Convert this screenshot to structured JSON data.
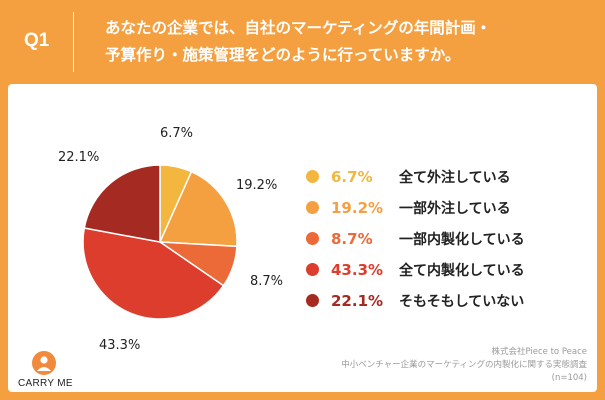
{
  "header": {
    "question_number": "Q1",
    "question_line1": "あなたの企業では、自社のマーケティングの年間計画・",
    "question_line2": "予算作り・施策管理をどのように行っていますか。"
  },
  "chart_data": {
    "type": "pie",
    "title": "あなたの企業では、自社のマーケティングの年間計画・予算作り・施策管理をどのように行っていますか。",
    "categories": [
      "全て外注している",
      "一部外注している",
      "一部内製化している",
      "全て内製化している",
      "そもそもしていない"
    ],
    "values": [
      6.7,
      19.2,
      8.7,
      43.3,
      22.1
    ],
    "value_labels": [
      "6.7%",
      "19.2%",
      "8.7%",
      "43.3%",
      "22.1%"
    ],
    "colors": [
      "#f3b63f",
      "#f4a041",
      "#eb6a37",
      "#dc3d2d",
      "#a52a21"
    ],
    "label_colors": [
      "#f3b63f",
      "#f4a041",
      "#eb6a37",
      "#dc3d2d",
      "#a52a21"
    ],
    "start_angle": "12 o'clock",
    "direction": "clockwise",
    "legend_position": "right"
  },
  "footer": {
    "brand": "CARRY ME",
    "source_line1": "株式会社Piece to Peace",
    "source_line2": "中小ベンチャー企業のマーケティングの内製化に関する実態調査",
    "source_line3": "(n=104)"
  }
}
